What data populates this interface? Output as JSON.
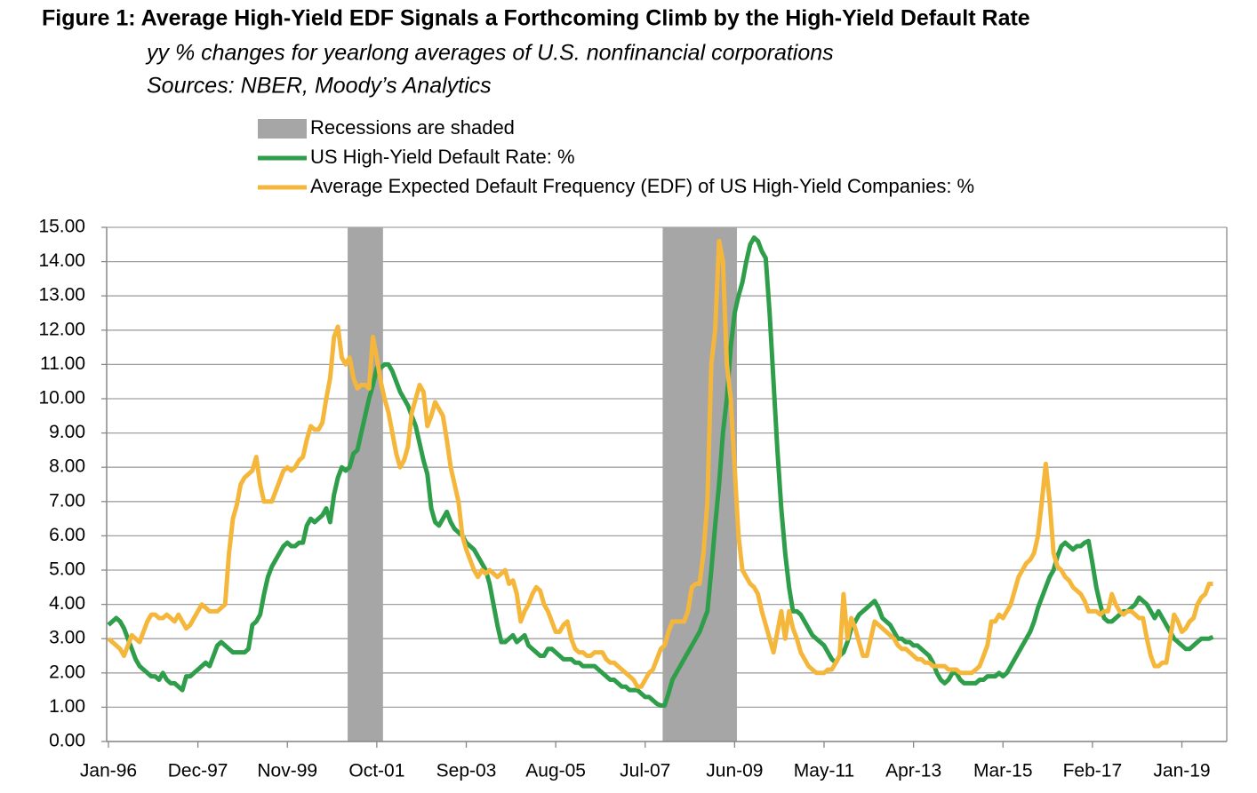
{
  "chart_data": {
    "type": "line",
    "title": "Figure 1:  Average High-Yield EDF Signals a Forthcoming Climb by the High-Yield Default Rate",
    "subtitle": "yy % changes for yearlong averages of U.S. nonfinancial corporations",
    "source": "Sources: NBER, Moody’s Analytics",
    "categories": [
      "Jan-96",
      null,
      null,
      null,
      null,
      null,
      null,
      null,
      null,
      null,
      null,
      null,
      null,
      null,
      null,
      null,
      null,
      null,
      null,
      null,
      null,
      null,
      null,
      "Dec-97",
      null,
      null,
      null,
      null,
      null,
      null,
      null,
      null,
      null,
      null,
      null,
      null,
      null,
      null,
      null,
      null,
      null,
      null,
      null,
      null,
      null,
      null,
      "Nov-99",
      null,
      null,
      null,
      null,
      null,
      null,
      null,
      null,
      null,
      null,
      null,
      null,
      null,
      null,
      null,
      null,
      null,
      null,
      null,
      null,
      null,
      null,
      "Oct-01",
      null,
      null,
      null,
      null,
      null,
      null,
      null,
      null,
      null,
      null,
      null,
      null,
      null,
      null,
      null,
      null,
      null,
      null,
      null,
      null,
      null,
      null,
      "Sep-03",
      null,
      null,
      null,
      null,
      null,
      null,
      null,
      null,
      null,
      null,
      null,
      null,
      null,
      null,
      null,
      null,
      null,
      null,
      null,
      null,
      null,
      null,
      "Aug-05",
      null,
      null,
      null,
      null,
      null,
      null,
      null,
      null,
      null,
      null,
      null,
      null,
      null,
      null,
      null,
      null,
      null,
      null,
      null,
      null,
      null,
      null,
      "Jul-07",
      null,
      null,
      null,
      null,
      null,
      null,
      null,
      null,
      null,
      null,
      null,
      null,
      null,
      null,
      null,
      null,
      null,
      null,
      null,
      null,
      null,
      null,
      "Jun-09",
      null,
      null,
      null,
      null,
      null,
      null,
      null,
      null,
      null,
      null,
      null,
      null,
      null,
      null,
      null,
      null,
      null,
      null,
      null,
      null,
      null,
      null,
      "May-11",
      null,
      null,
      null,
      null,
      null,
      null,
      null,
      null,
      null,
      null,
      null,
      null,
      null,
      null,
      null,
      null,
      null,
      null,
      null,
      null,
      null,
      null,
      "Apr-13",
      null,
      null,
      null,
      null,
      null,
      null,
      null,
      null,
      null,
      null,
      null,
      null,
      null,
      null,
      null,
      null,
      null,
      null,
      null,
      null,
      null,
      null,
      "Mar-15",
      null,
      null,
      null,
      null,
      null,
      null,
      null,
      null,
      null,
      null,
      null,
      null,
      null,
      null,
      null,
      null,
      null,
      null,
      null,
      null,
      null,
      null,
      "Feb-17",
      null,
      null,
      null,
      null,
      null,
      null,
      null,
      null,
      null,
      null,
      null,
      null,
      null,
      null,
      null,
      null,
      null,
      null,
      null,
      null,
      null,
      null,
      "Jan-19",
      null,
      null,
      null,
      null,
      null,
      null,
      null,
      null,
      null,
      null,
      null
    ],
    "series": [
      {
        "name": "Recessions are shaded",
        "kind": "shade",
        "color": "#a6a6a6",
        "values": [
          null,
          null,
          null,
          null,
          null,
          null,
          null,
          null,
          null,
          null,
          null,
          null,
          null,
          null,
          null,
          null,
          null,
          null,
          null,
          null,
          null,
          null,
          null,
          null,
          null,
          null,
          null,
          null,
          null,
          null,
          null,
          null,
          null,
          null,
          null,
          null,
          null,
          null,
          null,
          null,
          null,
          null,
          null,
          null,
          null,
          null,
          null,
          null,
          null,
          null,
          null,
          null,
          null,
          null,
          null,
          null,
          null,
          null,
          null,
          null,
          null,
          null,
          15,
          15,
          15,
          15,
          15,
          15,
          15,
          15,
          15,
          null,
          null,
          null,
          null,
          null,
          null,
          null,
          null,
          null,
          null,
          null,
          null,
          null,
          null,
          null,
          null,
          null,
          null,
          null,
          null,
          null,
          null,
          null,
          null,
          null,
          null,
          null,
          null,
          null,
          null,
          null,
          null,
          null,
          null,
          null,
          null,
          null,
          null,
          null,
          null,
          null,
          null,
          null,
          null,
          null,
          null,
          null,
          null,
          null,
          null,
          null,
          null,
          null,
          null,
          null,
          null,
          null,
          null,
          null,
          null,
          null,
          null,
          null,
          null,
          null,
          null,
          null,
          null,
          null,
          null,
          null,
          null,
          15,
          15,
          15,
          15,
          15,
          15,
          15,
          15,
          15,
          15,
          15,
          15,
          15,
          15,
          15,
          15,
          15,
          15,
          15,
          null,
          null,
          null,
          null,
          null,
          null,
          null,
          null,
          null,
          null,
          null,
          null,
          null,
          null,
          null,
          null,
          null,
          null,
          null,
          null,
          null,
          null,
          null,
          null,
          null,
          null,
          null,
          null,
          null,
          null,
          null,
          null,
          null,
          null,
          null,
          null,
          null,
          null,
          null,
          null,
          null,
          null,
          null,
          null,
          null,
          null,
          null,
          null,
          null,
          null,
          null,
          null,
          null,
          null,
          null,
          null,
          null,
          null,
          null,
          null,
          null,
          null,
          null,
          null,
          null,
          null,
          null,
          null,
          null,
          null,
          null,
          null,
          null,
          null,
          null,
          null,
          null,
          null,
          null,
          null,
          null,
          null,
          null,
          null,
          null,
          null,
          null,
          null,
          null,
          null,
          null,
          null,
          null,
          null,
          null,
          null,
          null,
          null,
          null,
          null,
          null,
          null,
          null,
          null,
          null,
          null,
          null,
          null,
          null,
          null,
          null,
          null,
          null,
          null,
          null,
          null,
          null,
          null,
          null,
          null,
          null,
          null,
          null,
          null,
          null,
          null
        ]
      },
      {
        "name": "US High-Yield Default Rate: %",
        "kind": "line",
        "color": "#2f9e4a",
        "values": [
          3.4,
          3.5,
          3.6,
          3.5,
          3.3,
          3.0,
          2.7,
          2.4,
          2.2,
          2.1,
          2.0,
          1.9,
          1.9,
          1.8,
          2.0,
          1.8,
          1.7,
          1.7,
          1.6,
          1.5,
          1.9,
          1.9,
          2.0,
          2.1,
          2.2,
          2.3,
          2.2,
          2.5,
          2.8,
          2.9,
          2.8,
          2.7,
          2.6,
          2.6,
          2.6,
          2.6,
          2.7,
          3.4,
          3.5,
          3.7,
          4.3,
          4.8,
          5.1,
          5.3,
          5.5,
          5.7,
          5.8,
          5.7,
          5.7,
          5.8,
          5.8,
          6.3,
          6.5,
          6.4,
          6.5,
          6.6,
          6.8,
          6.4,
          7.2,
          7.7,
          8.0,
          7.9,
          8.0,
          8.4,
          8.5,
          9.0,
          9.5,
          10.0,
          10.4,
          10.9,
          10.9,
          11.0,
          11.0,
          10.8,
          10.5,
          10.2,
          10.0,
          9.8,
          9.5,
          9.2,
          8.7,
          8.2,
          7.8,
          6.8,
          6.4,
          6.3,
          6.5,
          6.7,
          6.4,
          6.2,
          6.1,
          6.0,
          5.8,
          5.7,
          5.6,
          5.4,
          5.2,
          5.0,
          4.6,
          4.0,
          3.4,
          2.9,
          2.9,
          3.0,
          3.1,
          2.9,
          3.0,
          3.1,
          2.8,
          2.7,
          2.6,
          2.5,
          2.5,
          2.7,
          2.7,
          2.6,
          2.5,
          2.4,
          2.4,
          2.4,
          2.3,
          2.3,
          2.2,
          2.2,
          2.2,
          2.2,
          2.1,
          2.0,
          1.9,
          1.8,
          1.8,
          1.7,
          1.6,
          1.6,
          1.5,
          1.5,
          1.5,
          1.4,
          1.3,
          1.3,
          1.2,
          1.1,
          1.05,
          1.05,
          1.4,
          1.8,
          2.0,
          2.2,
          2.4,
          2.6,
          2.8,
          3.0,
          3.2,
          3.5,
          3.8,
          5.0,
          6.3,
          7.5,
          9.0,
          10.0,
          11.5,
          12.5,
          13.0,
          13.4,
          14.0,
          14.5,
          14.7,
          14.6,
          14.3,
          14.1,
          12.5,
          10.5,
          8.5,
          6.8,
          5.5,
          4.5,
          3.8,
          3.8,
          3.7,
          3.5,
          3.3,
          3.1,
          3.0,
          2.9,
          2.8,
          2.6,
          2.4,
          2.3,
          2.5,
          2.6,
          2.9,
          3.3,
          3.5,
          3.7,
          3.8,
          3.9,
          4.0,
          4.1,
          3.9,
          3.6,
          3.5,
          3.4,
          3.2,
          3.0,
          3.0,
          2.9,
          2.9,
          2.8,
          2.8,
          2.7,
          2.6,
          2.5,
          2.3,
          2.0,
          1.8,
          1.7,
          1.8,
          2.0,
          2.0,
          1.8,
          1.7,
          1.7,
          1.7,
          1.7,
          1.8,
          1.8,
          1.9,
          1.9,
          1.9,
          2.0,
          1.9,
          2.0,
          2.2,
          2.4,
          2.6,
          2.8,
          3.0,
          3.2,
          3.5,
          3.9,
          4.2,
          4.5,
          4.8,
          5.0,
          5.4,
          5.7,
          5.8,
          5.7,
          5.6,
          5.7,
          5.7,
          5.8,
          5.85,
          5.2,
          4.5,
          4.0,
          3.6,
          3.5,
          3.5,
          3.6,
          3.7,
          3.8,
          3.8,
          3.9,
          4.0,
          4.2,
          4.1,
          4.0,
          3.8,
          3.6,
          3.8,
          3.6,
          3.4,
          3.2,
          3.0,
          2.9,
          2.8,
          2.7,
          2.7,
          2.8,
          2.9,
          3.0,
          3.0,
          3.0,
          3.05,
          null,
          null,
          null
        ]
      },
      {
        "name": "Average Expected Default Frequency (EDF) of US High-Yield Companies: %",
        "kind": "line",
        "color": "#f5b73b",
        "values": [
          3.0,
          2.9,
          2.8,
          2.7,
          2.5,
          2.8,
          3.1,
          3.0,
          2.9,
          3.2,
          3.5,
          3.7,
          3.7,
          3.6,
          3.6,
          3.7,
          3.6,
          3.5,
          3.7,
          3.5,
          3.3,
          3.4,
          3.6,
          3.8,
          4.0,
          3.9,
          3.8,
          3.8,
          3.8,
          3.9,
          4.0,
          5.5,
          6.5,
          6.9,
          7.5,
          7.7,
          7.8,
          7.9,
          8.3,
          7.5,
          7.0,
          7.0,
          7.0,
          7.3,
          7.6,
          7.9,
          8.0,
          7.9,
          8.0,
          8.2,
          8.3,
          8.8,
          9.2,
          9.1,
          9.1,
          9.3,
          10.0,
          10.6,
          11.8,
          12.1,
          11.2,
          11.0,
          11.2,
          10.6,
          10.3,
          10.4,
          10.4,
          10.3,
          11.8,
          11.2,
          10.5,
          10.0,
          9.6,
          9.0,
          8.4,
          8.0,
          8.2,
          8.6,
          9.6,
          10.0,
          10.4,
          10.2,
          9.2,
          9.5,
          9.9,
          9.7,
          9.5,
          8.8,
          8.0,
          7.5,
          7.0,
          6.0,
          5.6,
          5.3,
          5.0,
          4.8,
          5.0,
          4.9,
          5.0,
          4.9,
          4.8,
          4.9,
          5.0,
          4.6,
          4.7,
          4.3,
          3.5,
          3.8,
          4.0,
          4.3,
          4.5,
          4.4,
          4.0,
          3.8,
          3.5,
          3.2,
          3.2,
          3.4,
          3.5,
          3.0,
          2.7,
          2.6,
          2.6,
          2.5,
          2.5,
          2.6,
          2.6,
          2.6,
          2.4,
          2.3,
          2.3,
          2.2,
          2.1,
          2.0,
          1.9,
          1.8,
          1.6,
          1.6,
          1.8,
          2.0,
          2.1,
          2.4,
          2.7,
          2.8,
          3.2,
          3.5,
          3.5,
          3.5,
          3.5,
          3.8,
          4.5,
          4.6,
          4.6,
          5.5,
          7.0,
          11.0,
          12.0,
          14.6,
          14.0,
          11.0,
          10.0,
          8.0,
          6.0,
          5.0,
          4.8,
          4.6,
          4.5,
          4.3,
          3.8,
          3.4,
          3.0,
          2.6,
          3.2,
          3.8,
          3.0,
          3.8,
          3.3,
          3.0,
          2.6,
          2.4,
          2.2,
          2.1,
          2.0,
          2.0,
          2.0,
          2.1,
          2.1,
          2.3,
          2.5,
          4.3,
          3.0,
          3.6,
          3.3,
          2.9,
          2.5,
          2.5,
          3.0,
          3.5,
          3.4,
          3.3,
          3.2,
          3.1,
          3.0,
          2.8,
          2.7,
          2.7,
          2.6,
          2.5,
          2.4,
          2.4,
          2.3,
          2.3,
          2.2,
          2.2,
          2.2,
          2.2,
          2.1,
          2.1,
          2.1,
          2.0,
          2.0,
          2.0,
          2.0,
          2.1,
          2.2,
          2.5,
          2.8,
          3.5,
          3.5,
          3.7,
          3.6,
          3.8,
          4.0,
          4.4,
          4.8,
          5.0,
          5.2,
          5.3,
          5.5,
          6.0,
          7.0,
          8.1,
          7.0,
          5.5,
          5.1,
          5.0,
          4.8,
          4.7,
          4.5,
          4.4,
          4.3,
          4.1,
          3.8,
          3.8,
          3.8,
          3.7,
          3.8,
          3.8,
          4.3,
          4.0,
          3.8,
          3.7,
          3.8,
          3.8,
          3.7,
          3.6,
          3.6,
          3.0,
          2.5,
          2.2,
          2.2,
          2.3,
          2.3,
          3.0,
          3.7,
          3.5,
          3.2,
          3.3,
          3.5,
          3.6,
          4.0,
          4.2,
          4.3,
          4.6,
          4.6,
          null,
          null,
          null
        ]
      }
    ],
    "ylim": [
      0,
      15
    ],
    "yticks": [
      {
        "value": 0,
        "label": "0.00"
      },
      {
        "value": 1,
        "label": "1.00"
      },
      {
        "value": 2,
        "label": "2.00"
      },
      {
        "value": 3,
        "label": "3.00"
      },
      {
        "value": 4,
        "label": "4.00"
      },
      {
        "value": 5,
        "label": "5.00"
      },
      {
        "value": 6,
        "label": "6.00"
      },
      {
        "value": 7,
        "label": "7.00"
      },
      {
        "value": 8,
        "label": "8.00"
      },
      {
        "value": 9,
        "label": "9.00"
      },
      {
        "value": 10,
        "label": "10.00"
      },
      {
        "value": 11,
        "label": "11.00"
      },
      {
        "value": 12,
        "label": "12.00"
      },
      {
        "value": 13,
        "label": "13.00"
      },
      {
        "value": 14,
        "label": "14.00"
      },
      {
        "value": 15,
        "label": "15.00"
      }
    ],
    "grid": true
  }
}
